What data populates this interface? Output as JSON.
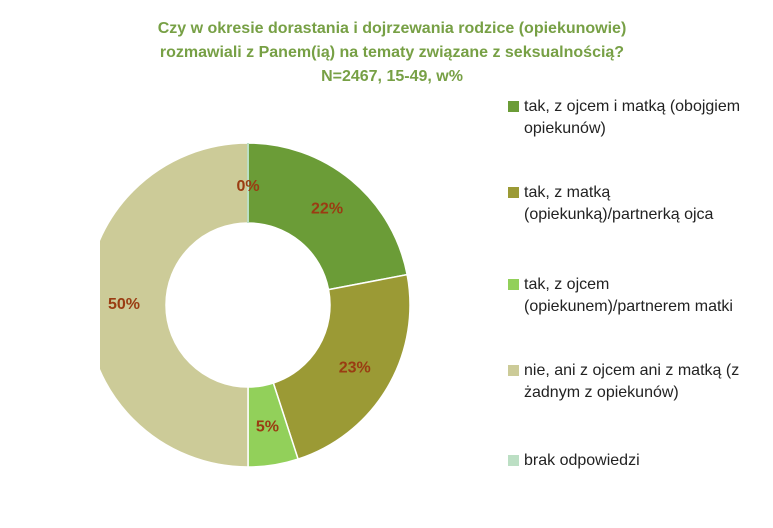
{
  "chart_data": {
    "type": "donut",
    "title": [
      "Czy w okresie dorastania i dojrzewania rodzice (opiekunowie)",
      "rozmawiali z Panem(ią) na tematy związane z seksualnością?",
      "N=2467, 15-49, w%"
    ],
    "series": [
      {
        "name": "tak, z ojcem i matką (obojgiem opiekunów)",
        "color": "#6b9c37",
        "values": [
          22
        ],
        "value_labels": [
          "22%"
        ]
      },
      {
        "name": "tak, z matką (opiekunką)/partnerką ojca",
        "color": "#9b9a35",
        "values": [
          23
        ],
        "value_labels": [
          "23%"
        ]
      },
      {
        "name": "tak, z ojcem (opiekunem)/partnerem matki",
        "color": "#92d05a",
        "values": [
          5
        ],
        "value_labels": [
          "5%"
        ]
      },
      {
        "name": "nie, ani z ojcem ani z matką (z żadnym z opiekunów)",
        "color": "#cccb98",
        "values": [
          50
        ],
        "value_labels": [
          "50%"
        ]
      },
      {
        "name": "brak odpowiedzi",
        "color": "#bcdfc4",
        "values": [
          0
        ],
        "value_labels": [
          "0%"
        ]
      }
    ]
  }
}
